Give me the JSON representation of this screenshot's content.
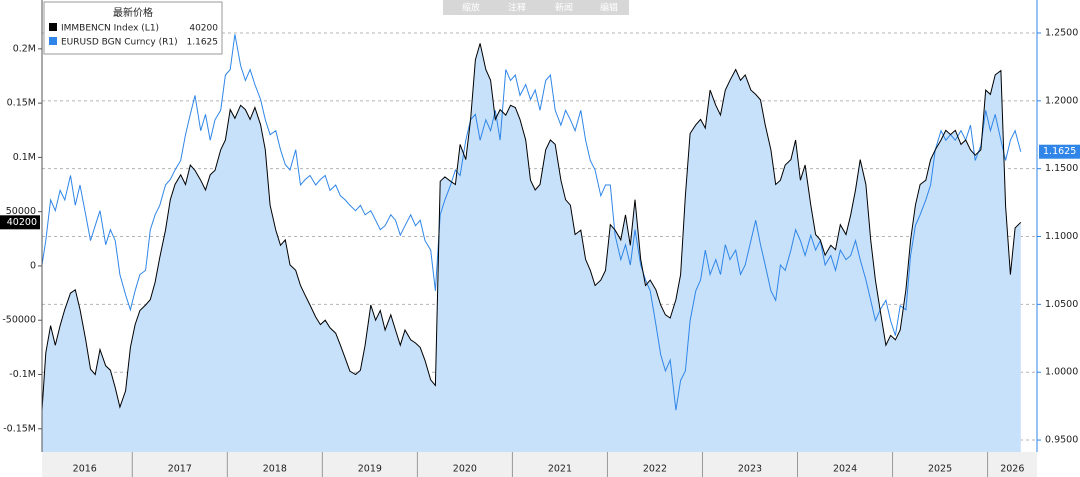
{
  "chart_data": {
    "type": "line",
    "toolbar": [
      "缩放",
      "注释",
      "新闻",
      "编辑"
    ],
    "legend_title": "最新价格",
    "grid": true,
    "xlim": [
      2016.05,
      2026.52
    ],
    "xticks": [
      2016,
      2017,
      2018,
      2019,
      2020,
      2021,
      2022,
      2023,
      2024,
      2025,
      2026
    ],
    "ylim": [
      -171400,
      245000
    ],
    "yticks": [
      {
        "value": 200000,
        "label": "0.2M"
      },
      {
        "value": 150000,
        "label": "0.15M"
      },
      {
        "value": 100000,
        "label": "0.1M"
      },
      50000,
      0,
      -50000,
      {
        "value": -100000,
        "label": "-0.1M"
      },
      {
        "value": -150000,
        "label": "-0.15M"
      }
    ],
    "y2lim": [
      0.9412,
      1.2743
    ],
    "y2ticks": [
      {
        "value": 1.25,
        "label": "1.2500"
      },
      {
        "value": 1.2,
        "label": "1.2000"
      },
      {
        "value": 1.15,
        "label": "1.1500"
      },
      {
        "value": 1.1,
        "label": "1.1000"
      },
      {
        "value": 1.05,
        "label": "1.0500"
      },
      {
        "value": 1.0,
        "label": "1.0000"
      },
      {
        "value": 0.95,
        "label": "0.9500"
      }
    ],
    "x": [
      2016.05,
      2016.09,
      2016.14,
      2016.19,
      2016.24,
      2016.29,
      2016.35,
      2016.4,
      2016.45,
      2016.51,
      2016.56,
      2016.61,
      2016.66,
      2016.72,
      2016.77,
      2016.82,
      2016.87,
      2016.93,
      2016.98,
      2017.03,
      2017.08,
      2017.14,
      2017.19,
      2017.24,
      2017.29,
      2017.35,
      2017.4,
      2017.45,
      2017.51,
      2017.56,
      2017.61,
      2017.66,
      2017.72,
      2017.77,
      2017.82,
      2017.87,
      2017.93,
      2017.98,
      2018.03,
      2018.08,
      2018.14,
      2018.19,
      2018.24,
      2018.29,
      2018.35,
      2018.4,
      2018.45,
      2018.51,
      2018.56,
      2018.61,
      2018.66,
      2018.72,
      2018.77,
      2018.82,
      2018.87,
      2018.93,
      2018.98,
      2019.03,
      2019.08,
      2019.14,
      2019.19,
      2019.24,
      2019.29,
      2019.35,
      2019.4,
      2019.45,
      2019.51,
      2019.56,
      2019.61,
      2019.66,
      2019.72,
      2019.77,
      2019.82,
      2019.87,
      2019.93,
      2019.98,
      2020.03,
      2020.08,
      2020.14,
      2020.19,
      2020.24,
      2020.29,
      2020.35,
      2020.4,
      2020.45,
      2020.51,
      2020.56,
      2020.61,
      2020.66,
      2020.72,
      2020.77,
      2020.82,
      2020.87,
      2020.93,
      2020.98,
      2021.03,
      2021.08,
      2021.14,
      2021.19,
      2021.24,
      2021.29,
      2021.35,
      2021.4,
      2021.45,
      2021.51,
      2021.56,
      2021.61,
      2021.66,
      2021.72,
      2021.77,
      2021.82,
      2021.87,
      2021.93,
      2021.98,
      2022.03,
      2022.08,
      2022.14,
      2022.19,
      2022.24,
      2022.29,
      2022.35,
      2022.4,
      2022.45,
      2022.51,
      2022.56,
      2022.61,
      2022.66,
      2022.72,
      2022.77,
      2022.82,
      2022.87,
      2022.93,
      2022.98,
      2023.03,
      2023.08,
      2023.14,
      2023.19,
      2023.24,
      2023.29,
      2023.35,
      2023.4,
      2023.45,
      2023.51,
      2023.56,
      2023.61,
      2023.66,
      2023.72,
      2023.77,
      2023.82,
      2023.87,
      2023.93,
      2023.98,
      2024.03,
      2024.08,
      2024.14,
      2024.19,
      2024.24,
      2024.29,
      2024.35,
      2024.4,
      2024.45,
      2024.51,
      2024.56,
      2024.61,
      2024.66,
      2024.72,
      2024.77,
      2024.82,
      2024.87,
      2024.93,
      2024.98,
      2025.03,
      2025.08,
      2025.14,
      2025.19,
      2025.24,
      2025.29,
      2025.35,
      2025.4,
      2025.45,
      2025.51,
      2025.56,
      2025.61,
      2025.66,
      2025.72,
      2025.77,
      2025.82,
      2025.87,
      2025.93,
      2025.98,
      2026.03,
      2026.08,
      2026.14,
      2026.19,
      2026.24,
      2026.29,
      2026.35
    ],
    "series": [
      {
        "name": "IMMBENCN Index (L1)",
        "color": "#000000",
        "fill": "#c7e1fb",
        "axis": "y",
        "values": [
          -133000,
          -80000,
          -55000,
          -73000,
          -55000,
          -40000,
          -25000,
          -22000,
          -40000,
          -68000,
          -95000,
          -100000,
          -77000,
          -92000,
          -96000,
          -112000,
          -130000,
          -115000,
          -75000,
          -54000,
          -41000,
          -36000,
          -31000,
          -15000,
          8000,
          33000,
          61000,
          75000,
          84000,
          75000,
          93000,
          88000,
          79000,
          70000,
          84000,
          88000,
          107000,
          116000,
          144000,
          136000,
          148000,
          144000,
          135000,
          146000,
          130000,
          107000,
          56000,
          33000,
          19000,
          24000,
          1000,
          -4000,
          -18000,
          -27000,
          -36000,
          -47000,
          -54000,
          -50000,
          -57000,
          -62000,
          -73000,
          -85000,
          -97000,
          -100000,
          -96000,
          -73000,
          -36000,
          -50000,
          -41000,
          -59000,
          -45000,
          -59000,
          -73000,
          -59000,
          -68000,
          -71000,
          -75000,
          -87000,
          -105000,
          -110000,
          78000,
          82000,
          78000,
          75000,
          112000,
          98000,
          135000,
          190000,
          205000,
          181000,
          171000,
          135000,
          144000,
          139000,
          148000,
          146000,
          135000,
          116000,
          79000,
          70000,
          75000,
          107000,
          116000,
          112000,
          79000,
          61000,
          56000,
          29000,
          33000,
          6000,
          -4000,
          -18000,
          -13000,
          -4000,
          38000,
          33000,
          24000,
          47000,
          19000,
          61000,
          6000,
          -18000,
          -13000,
          -22000,
          -36000,
          -45000,
          -48000,
          -31000,
          -8000,
          65000,
          122000,
          130000,
          135000,
          127000,
          162000,
          148000,
          139000,
          162000,
          171000,
          181000,
          171000,
          176000,
          162000,
          158000,
          153000,
          130000,
          107000,
          75000,
          79000,
          93000,
          98000,
          116000,
          79000,
          93000,
          56000,
          29000,
          24000,
          10000,
          19000,
          15000,
          38000,
          29000,
          47000,
          70000,
          98000,
          75000,
          24000,
          -13000,
          -41000,
          -73000,
          -64000,
          -68000,
          -59000,
          -22000,
          24000,
          56000,
          75000,
          79000,
          98000,
          107000,
          116000,
          125000,
          121000,
          125000,
          112000,
          116000,
          107000,
          102000,
          107000,
          162000,
          158000,
          176000,
          180000,
          55000,
          -8000,
          35000,
          40200
        ]
      },
      {
        "name": "EURUSD BGN Curncy (R1)",
        "color": "#2f86e8",
        "axis": "y2",
        "values": [
          1.079,
          1.097,
          1.127,
          1.119,
          1.134,
          1.127,
          1.145,
          1.123,
          1.138,
          1.116,
          1.097,
          1.108,
          1.119,
          1.094,
          1.105,
          1.097,
          1.072,
          1.057,
          1.046,
          1.06,
          1.072,
          1.075,
          1.105,
          1.116,
          1.123,
          1.138,
          1.142,
          1.149,
          1.156,
          1.175,
          1.19,
          1.204,
          1.178,
          1.19,
          1.171,
          1.186,
          1.193,
          1.219,
          1.223,
          1.249,
          1.226,
          1.215,
          1.223,
          1.212,
          1.201,
          1.186,
          1.175,
          1.178,
          1.164,
          1.153,
          1.149,
          1.164,
          1.138,
          1.142,
          1.145,
          1.138,
          1.142,
          1.145,
          1.134,
          1.138,
          1.13,
          1.127,
          1.123,
          1.119,
          1.123,
          1.116,
          1.119,
          1.112,
          1.105,
          1.108,
          1.116,
          1.112,
          1.101,
          1.108,
          1.116,
          1.108,
          1.112,
          1.097,
          1.09,
          1.06,
          1.116,
          1.127,
          1.138,
          1.149,
          1.145,
          1.171,
          1.186,
          1.19,
          1.171,
          1.186,
          1.178,
          1.193,
          1.171,
          1.223,
          1.215,
          1.219,
          1.204,
          1.212,
          1.201,
          1.208,
          1.193,
          1.215,
          1.219,
          1.193,
          1.182,
          1.193,
          1.186,
          1.178,
          1.193,
          1.171,
          1.156,
          1.149,
          1.13,
          1.138,
          1.138,
          1.101,
          1.083,
          1.094,
          1.079,
          1.105,
          1.079,
          1.068,
          1.06,
          1.035,
          1.013,
          1.001,
          1.009,
          0.972,
          0.994,
          1.001,
          1.038,
          1.06,
          1.068,
          1.09,
          1.072,
          1.083,
          1.072,
          1.094,
          1.083,
          1.09,
          1.072,
          1.079,
          1.097,
          1.112,
          1.094,
          1.079,
          1.06,
          1.053,
          1.079,
          1.075,
          1.09,
          1.105,
          1.097,
          1.086,
          1.101,
          1.09,
          1.097,
          1.079,
          1.086,
          1.075,
          1.09,
          1.083,
          1.086,
          1.097,
          1.083,
          1.068,
          1.053,
          1.038,
          1.046,
          1.053,
          1.038,
          1.027,
          1.049,
          1.046,
          1.086,
          1.108,
          1.116,
          1.127,
          1.138,
          1.164,
          1.178,
          1.171,
          1.175,
          1.171,
          1.178,
          1.171,
          1.182,
          1.156,
          1.167,
          1.193,
          1.178,
          1.19,
          1.171,
          1.156,
          1.171,
          1.178,
          1.1625
        ]
      }
    ]
  }
}
